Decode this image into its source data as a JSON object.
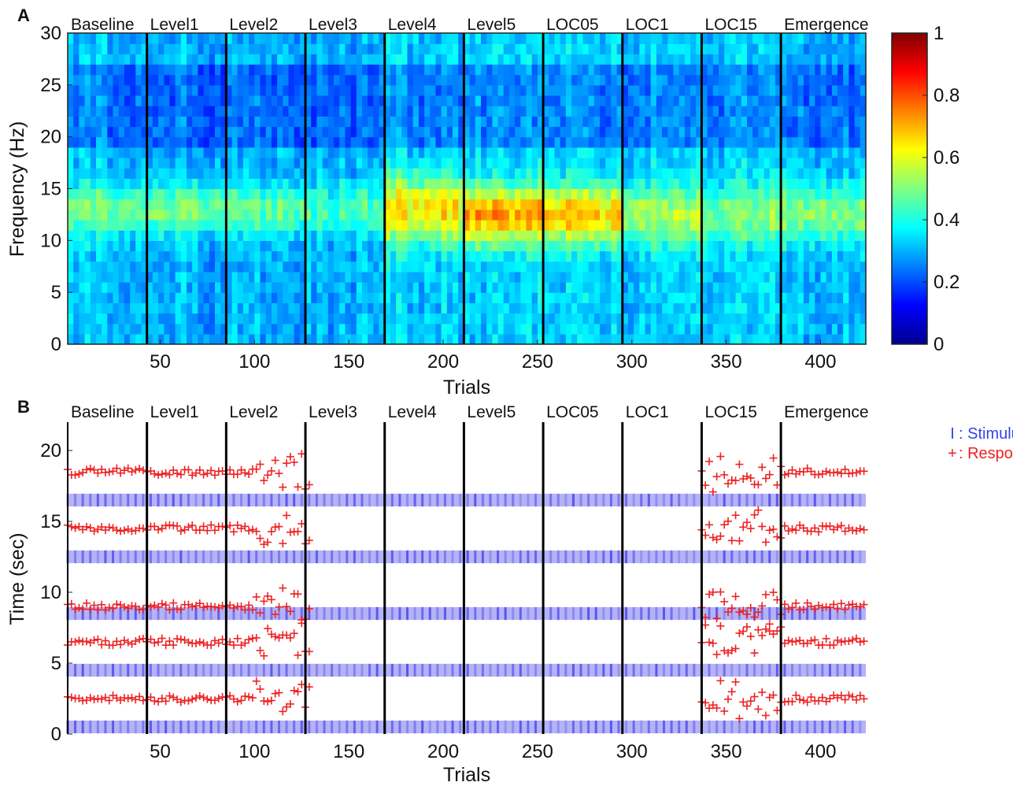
{
  "chart_data": [
    {
      "panel": "A",
      "type": "heatmap",
      "xlabel": "Trials",
      "ylabel": "Frequency (Hz)",
      "xlim": [
        1,
        424
      ],
      "ylim": [
        0,
        30
      ],
      "x_ticks": [
        50,
        100,
        150,
        200,
        250,
        300,
        350,
        400
      ],
      "y_ticks": [
        0,
        5,
        10,
        15,
        20,
        25,
        30
      ],
      "phases": [
        "Baseline",
        "Level1",
        "Level2",
        "Level3",
        "Level4",
        "Level5",
        "LOC05",
        "LOC1",
        "LOC15",
        "Emergence"
      ],
      "phase_boundaries": [
        43,
        85,
        127,
        169,
        211,
        253,
        295,
        337,
        379
      ],
      "colorbar": {
        "min": 0,
        "max": 1,
        "ticks": [
          0,
          0.2,
          0.4,
          0.6,
          0.8,
          1
        ],
        "colormap": "jet"
      },
      "mean_coherence_by_phase": [
        {
          "phase": "Baseline",
          "peak_band_hz": [
            10,
            16
          ],
          "peak_value": 0.5,
          "background": 0.32
        },
        {
          "phase": "Level1",
          "peak_band_hz": [
            10,
            16
          ],
          "peak_value": 0.5,
          "background": 0.3
        },
        {
          "phase": "Level2",
          "peak_band_hz": [
            10,
            16
          ],
          "peak_value": 0.48,
          "background": 0.3
        },
        {
          "phase": "Level3",
          "peak_band_hz": [
            10,
            16
          ],
          "peak_value": 0.45,
          "background": 0.3
        },
        {
          "phase": "Level4",
          "peak_band_hz": [
            9,
            17
          ],
          "peak_value": 0.65,
          "background": 0.33
        },
        {
          "phase": "Level5",
          "peak_band_hz": [
            9,
            16
          ],
          "peak_value": 0.72,
          "background": 0.33
        },
        {
          "phase": "LOC05",
          "peak_band_hz": [
            9,
            16
          ],
          "peak_value": 0.68,
          "background": 0.33
        },
        {
          "phase": "LOC1",
          "peak_band_hz": [
            9,
            16
          ],
          "peak_value": 0.55,
          "background": 0.33
        },
        {
          "phase": "LOC15",
          "peak_band_hz": [
            9,
            16
          ],
          "peak_value": 0.5,
          "background": 0.33
        },
        {
          "phase": "Emergence",
          "peak_band_hz": [
            9,
            16
          ],
          "peak_value": 0.5,
          "background": 0.3
        }
      ]
    },
    {
      "panel": "B",
      "type": "scatter",
      "xlabel": "Trials",
      "ylabel": "Time (sec)",
      "xlim": [
        1,
        424
      ],
      "ylim": [
        0,
        22
      ],
      "x_ticks": [
        50,
        100,
        150,
        200,
        250,
        300,
        350,
        400
      ],
      "y_ticks": [
        0,
        5,
        10,
        15,
        20
      ],
      "phases": [
        "Baseline",
        "Level1",
        "Level2",
        "Level3",
        "Level4",
        "Level5",
        "LOC05",
        "LOC1",
        "LOC15",
        "Emergence"
      ],
      "phase_boundaries": [
        43,
        85,
        127,
        169,
        211,
        253,
        295,
        337,
        379
      ],
      "legend": [
        {
          "marker": "I",
          "label": ": Stimulus",
          "color": "#3344ee"
        },
        {
          "marker": "+",
          "label": ": Response",
          "color": "#ee2222"
        }
      ],
      "series": [
        {
          "name": "Stimulus",
          "color": "#3344ee",
          "times_sec": [
            0.5,
            4.5,
            8.5,
            12.5,
            16.5
          ],
          "trials": [
            [
              1,
              424
            ],
            [
              1,
              424
            ],
            [
              1,
              424
            ],
            [
              1,
              424
            ],
            [
              1,
              424
            ]
          ]
        },
        {
          "name": "Response",
          "color": "#ee2222",
          "times_sec": [
            2.5,
            6.5,
            9.0,
            14.5,
            18.5
          ],
          "trial_ranges": [
            [
              1,
              130
            ],
            [
              337,
              424
            ]
          ]
        }
      ]
    }
  ]
}
